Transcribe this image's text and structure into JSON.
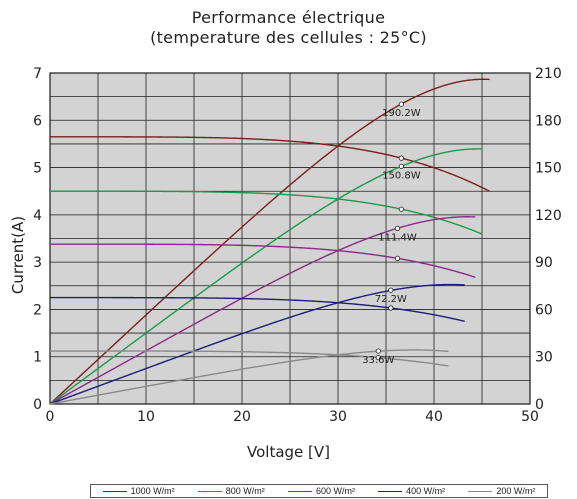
{
  "chart_data": {
    "type": "line",
    "title": "Performance électrique",
    "subtitle": "(temperature des cellules : 25°C)",
    "xlabel": "Voltage [V]",
    "ylabel": "Current(A)",
    "xlim": [
      0,
      50
    ],
    "ylim": [
      0,
      7
    ],
    "y2lim": [
      0,
      210
    ],
    "xticks": [
      "0",
      "10",
      "20",
      "30",
      "40",
      "50"
    ],
    "yticks": [
      "0",
      "1",
      "2",
      "3",
      "4",
      "5",
      "6",
      "7"
    ],
    "y2ticks": [
      "0",
      "30",
      "60",
      "90",
      "120",
      "150",
      "180",
      "210"
    ],
    "grid": true,
    "legend_position": "bottom",
    "series": [
      {
        "name": "1000 W/m²",
        "color": "#7a1f1a",
        "isc": 5.65,
        "voc": 45.8,
        "vmp": 36.6,
        "imp": 5.2,
        "pmax": 190.2,
        "peak_label": "190.2W"
      },
      {
        "name": "800 W/m²",
        "color": "#1a9a4a",
        "isc": 4.5,
        "voc": 45.0,
        "vmp": 36.6,
        "imp": 4.12,
        "pmax": 150.8,
        "peak_label": "150.8W"
      },
      {
        "name": "600 W/m²",
        "color": "#8a2a8a",
        "isc": 3.38,
        "voc": 44.3,
        "vmp": 36.2,
        "imp": 3.08,
        "pmax": 111.4,
        "peak_label": "111.4W"
      },
      {
        "name": "400 W/m²",
        "color": "#1e1e7a",
        "isc": 2.25,
        "voc": 43.2,
        "vmp": 35.5,
        "imp": 2.03,
        "pmax": 72.2,
        "peak_label": "72.2W"
      },
      {
        "name": "200 W/m²",
        "color": "#8a8a8a",
        "isc": 1.12,
        "voc": 41.5,
        "vmp": 34.2,
        "imp": 0.98,
        "pmax": 33.6,
        "peak_label": "33.6W"
      }
    ]
  }
}
